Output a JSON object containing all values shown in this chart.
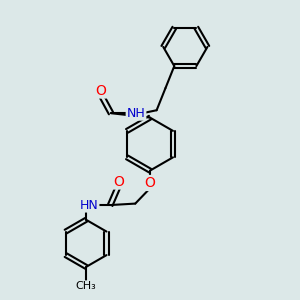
{
  "bg_color": "#dce8e8",
  "bond_color": "#000000",
  "bond_width": 1.5,
  "atom_colors": {
    "O": "#ff0000",
    "N": "#0000cd",
    "C": "#000000"
  },
  "font_size": 9,
  "fig_size": [
    3.0,
    3.0
  ],
  "dpi": 100,
  "xlim": [
    0,
    10
  ],
  "ylim": [
    0,
    10
  ]
}
